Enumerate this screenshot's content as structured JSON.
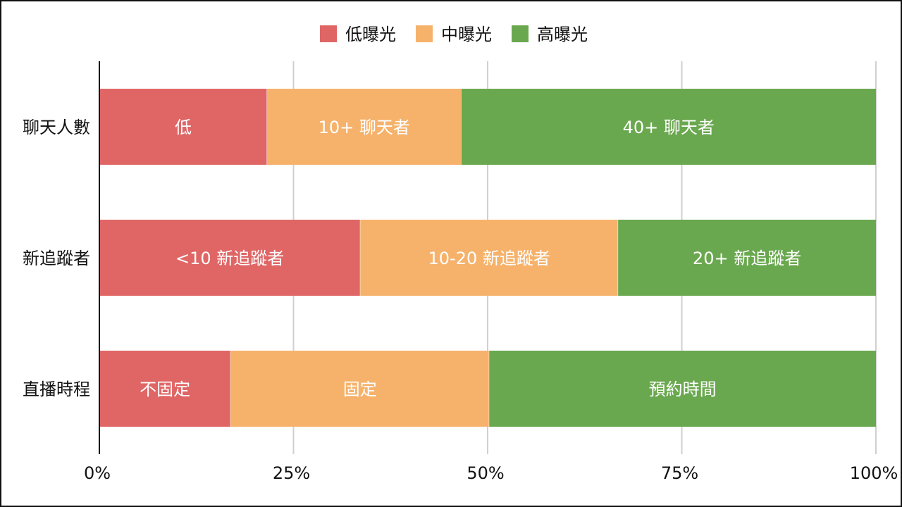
{
  "chart_data": {
    "type": "bar",
    "orientation": "horizontal",
    "stacked": true,
    "percent": true,
    "title": "",
    "xlabel": "",
    "ylabel": "",
    "xlim": [
      0,
      100
    ],
    "grid": true,
    "legend_position": "top-center",
    "x_ticks": [
      "0%",
      "25%",
      "50%",
      "75%",
      "100%"
    ],
    "x_tick_values": [
      0,
      25,
      50,
      75,
      100
    ],
    "categories": [
      "聊天人數",
      "新追蹤者",
      "直播時程"
    ],
    "series": [
      {
        "name": "低曝光",
        "color": "#e06666",
        "values": [
          21.6,
          33.6,
          16.9
        ],
        "labels": [
          "低",
          "<10 新追蹤者",
          "不固定"
        ]
      },
      {
        "name": "中曝光",
        "color": "#f6b26b",
        "values": [
          25.0,
          33.2,
          33.3
        ],
        "labels": [
          "10+ 聊天者",
          "10-20 新追蹤者",
          "固定"
        ]
      },
      {
        "name": "高曝光",
        "color": "#6aa84f",
        "values": [
          53.4,
          33.2,
          49.8
        ],
        "labels": [
          "40+ 聊天者",
          "20+ 新追蹤者",
          "預約時間"
        ]
      }
    ]
  }
}
